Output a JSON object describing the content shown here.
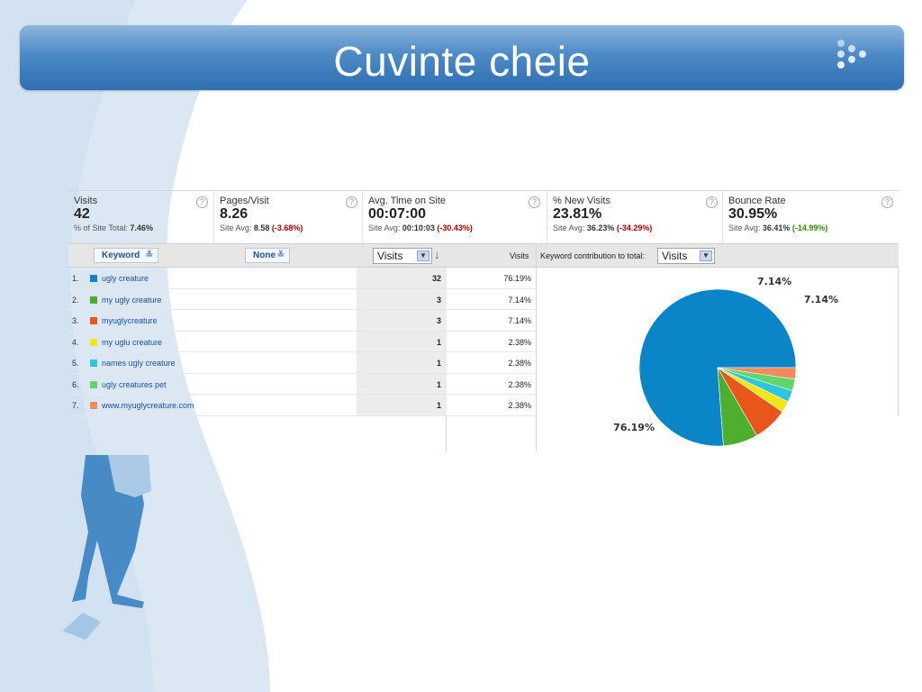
{
  "slide": {
    "title": "Cuvinte cheie"
  },
  "metrics": [
    {
      "label": "Visits",
      "value": "42",
      "sub_prefix": "% of Site Total: ",
      "sub_value": "7.46%",
      "sub_change": ""
    },
    {
      "label": "Pages/Visit",
      "value": "8.26",
      "sub_prefix": "Site Avg: ",
      "sub_value": "8.58",
      "sub_change": "(-3.68%)"
    },
    {
      "label": "Avg. Time on Site",
      "value": "00:07:00",
      "sub_prefix": "Site Avg: ",
      "sub_value": "00:10:03",
      "sub_change": "(-30.43%)"
    },
    {
      "label": "% New Visits",
      "value": "23.81%",
      "sub_prefix": "Site Avg: ",
      "sub_value": "36.23%",
      "sub_change": "(-34.29%)"
    },
    {
      "label": "Bounce Rate",
      "value": "30.95%",
      "sub_prefix": "Site Avg: ",
      "sub_value": "36.41%",
      "sub_change": "(-14.99%)"
    }
  ],
  "help_glyph": "?",
  "controls": {
    "primary_dimension": "Keyword",
    "secondary_dimension": "None",
    "sort_metric": "Visits",
    "visits_header": "Visits",
    "contribution_label": "Keyword contribution to total:",
    "contribution_metric": "Visits",
    "dropdown_glyph": "▼",
    "sort_arrow": "↓",
    "chevron_glyph": "≚"
  },
  "colors": {
    "ugly_creature": "#0a85c8",
    "my_ugly_creature": "#4caf2e",
    "myuglycreature": "#e8561a",
    "my_uglu_creature": "#f2e614",
    "names_ugly_creature": "#2ec6dc",
    "ugly_creatures_pet": "#5fd66a",
    "www": "#f28a5a",
    "negative_change": "#b30000",
    "positive_change": "#2e8b00"
  },
  "rows": [
    {
      "num": "1.",
      "keyword": "ugly creature",
      "visits": "32",
      "pct": "76.19%"
    },
    {
      "num": "2.",
      "keyword": "my ugly creature",
      "visits": "3",
      "pct": "7.14%"
    },
    {
      "num": "3.",
      "keyword": "myuglycreature",
      "visits": "3",
      "pct": "7.14%"
    },
    {
      "num": "4.",
      "keyword": "my uglu creature",
      "visits": "1",
      "pct": "2.38%"
    },
    {
      "num": "5.",
      "keyword": "names ugly creature",
      "visits": "1",
      "pct": "2.38%"
    },
    {
      "num": "6.",
      "keyword": "ugly creatures pet",
      "visits": "1",
      "pct": "2.38%"
    },
    {
      "num": "7.",
      "keyword": "www.myuglycreature.com",
      "visits": "1",
      "pct": "2.38%"
    }
  ],
  "chart_data": {
    "type": "pie",
    "categories": [
      "ugly creature",
      "my ugly creature",
      "myuglycreature",
      "my uglu creature",
      "names ugly creature",
      "ugly creatures pet",
      "www.myuglycreature.com"
    ],
    "values": [
      32,
      3,
      3,
      1,
      1,
      1,
      1
    ],
    "percent_labels": [
      "76.19%",
      "7.14%",
      "7.14%",
      "",
      "",
      "",
      ""
    ],
    "colors": [
      "#0a85c8",
      "#4caf2e",
      "#e8561a",
      "#f2e614",
      "#2ec6dc",
      "#5fd66a",
      "#f28a5a"
    ],
    "title": ""
  }
}
